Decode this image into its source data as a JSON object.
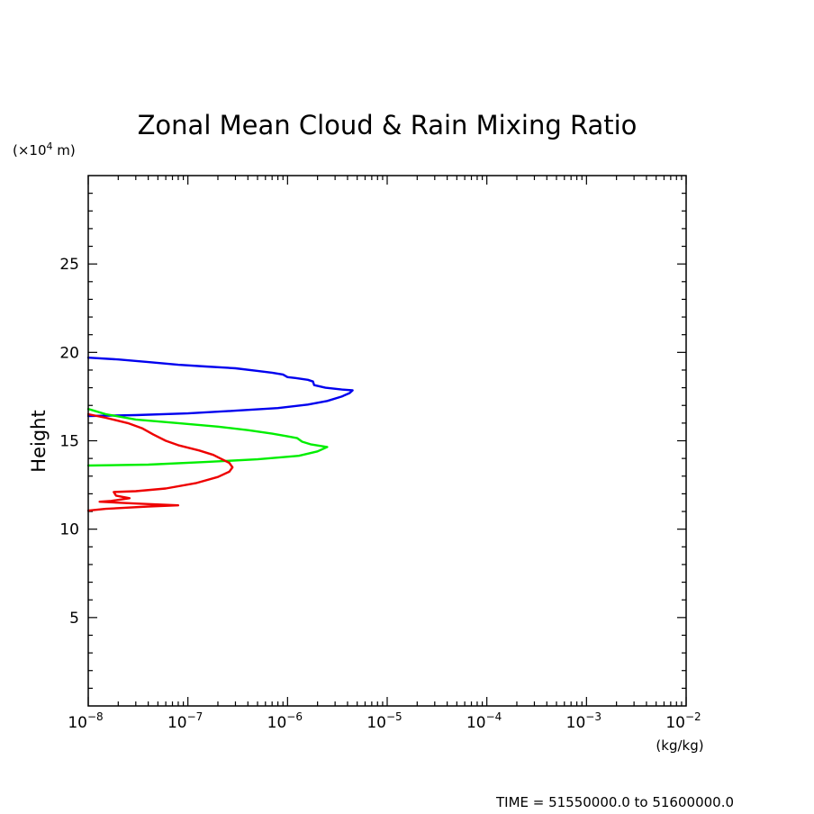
{
  "chart_data": {
    "type": "line",
    "title": "Zonal Mean Cloud & Rain Mixing Ratio",
    "ylabel": "Height",
    "y_unit_prefix": "(×10",
    "y_unit_exp": "4",
    "y_unit_suffix": " m)",
    "x_unit": "(kg/kg)",
    "xscale": "log",
    "xlim": [
      1e-08,
      0.01
    ],
    "ylim": [
      0,
      30
    ],
    "x_ticks": [
      {
        "base": "10",
        "exp": "−8",
        "value": 1e-08
      },
      {
        "base": "10",
        "exp": "−7",
        "value": 1e-07
      },
      {
        "base": "10",
        "exp": "−6",
        "value": 1e-06
      },
      {
        "base": "10",
        "exp": "−5",
        "value": 1e-05
      },
      {
        "base": "10",
        "exp": "−4",
        "value": 0.0001
      },
      {
        "base": "10",
        "exp": "−3",
        "value": 0.001
      },
      {
        "base": "10",
        "exp": "−2",
        "value": 0.01
      }
    ],
    "y_ticks": [
      {
        "label": "5",
        "value": 5
      },
      {
        "label": "10",
        "value": 10
      },
      {
        "label": "15",
        "value": 15
      },
      {
        "label": "20",
        "value": 20
      },
      {
        "label": "25",
        "value": 25
      }
    ],
    "series": [
      {
        "name": "blue",
        "color": "#0000ee",
        "points": [
          [
            1e-08,
            19.7
          ],
          [
            2e-08,
            19.6
          ],
          [
            4e-08,
            19.45
          ],
          [
            8e-08,
            19.3
          ],
          [
            1.5e-07,
            19.2
          ],
          [
            3e-07,
            19.1
          ],
          [
            5e-07,
            18.95
          ],
          [
            7e-07,
            18.85
          ],
          [
            9e-07,
            18.75
          ],
          [
            1e-06,
            18.6
          ],
          [
            1.2e-06,
            18.55
          ],
          [
            1.6e-06,
            18.45
          ],
          [
            1.8e-06,
            18.35
          ],
          [
            1.85e-06,
            18.15
          ],
          [
            2.4e-06,
            18.0
          ],
          [
            3.5e-06,
            17.9
          ],
          [
            4.5e-06,
            17.85
          ],
          [
            4.2e-06,
            17.7
          ],
          [
            3.5e-06,
            17.5
          ],
          [
            2.5e-06,
            17.25
          ],
          [
            1.6e-06,
            17.05
          ],
          [
            8e-07,
            16.85
          ],
          [
            3e-07,
            16.7
          ],
          [
            1e-07,
            16.55
          ],
          [
            3e-08,
            16.45
          ],
          [
            1e-08,
            16.4
          ]
        ]
      },
      {
        "name": "green",
        "color": "#00ee00",
        "points": [
          [
            1e-08,
            16.8
          ],
          [
            1.5e-08,
            16.5
          ],
          [
            3e-08,
            16.2
          ],
          [
            8e-08,
            16.0
          ],
          [
            2e-07,
            15.8
          ],
          [
            4e-07,
            15.6
          ],
          [
            7e-07,
            15.4
          ],
          [
            1e-06,
            15.25
          ],
          [
            1.25e-06,
            15.15
          ],
          [
            1.4e-06,
            14.95
          ],
          [
            1.7e-06,
            14.8
          ],
          [
            2.5e-06,
            14.65
          ],
          [
            2e-06,
            14.4
          ],
          [
            1.3e-06,
            14.15
          ],
          [
            5e-07,
            13.95
          ],
          [
            1.5e-07,
            13.8
          ],
          [
            4e-08,
            13.65
          ],
          [
            1e-08,
            13.6
          ]
        ]
      },
      {
        "name": "red",
        "color": "#ee0000",
        "points": [
          [
            1e-08,
            16.5
          ],
          [
            1.5e-08,
            16.3
          ],
          [
            2.5e-08,
            16.0
          ],
          [
            3.5e-08,
            15.7
          ],
          [
            4.5e-08,
            15.35
          ],
          [
            6e-08,
            15.0
          ],
          [
            8e-08,
            14.75
          ],
          [
            1.3e-07,
            14.45
          ],
          [
            1.8e-07,
            14.2
          ],
          [
            2.2e-07,
            13.95
          ],
          [
            2.6e-07,
            13.75
          ],
          [
            2.8e-07,
            13.5
          ],
          [
            2.6e-07,
            13.25
          ],
          [
            2e-07,
            12.95
          ],
          [
            1.2e-07,
            12.6
          ],
          [
            6e-08,
            12.3
          ],
          [
            3e-08,
            12.15
          ],
          [
            1.8e-08,
            12.1
          ],
          [
            1.9e-08,
            11.9
          ],
          [
            2.6e-08,
            11.75
          ],
          [
            1.7e-08,
            11.6
          ],
          [
            1.3e-08,
            11.55
          ],
          [
            3e-08,
            11.45
          ],
          [
            8e-08,
            11.35
          ],
          [
            4e-08,
            11.28
          ],
          [
            1.5e-08,
            11.15
          ],
          [
            1e-08,
            11.05
          ]
        ]
      }
    ]
  },
  "footer": {
    "time_label": "TIME = 51550000.0 to 51600000.0"
  }
}
